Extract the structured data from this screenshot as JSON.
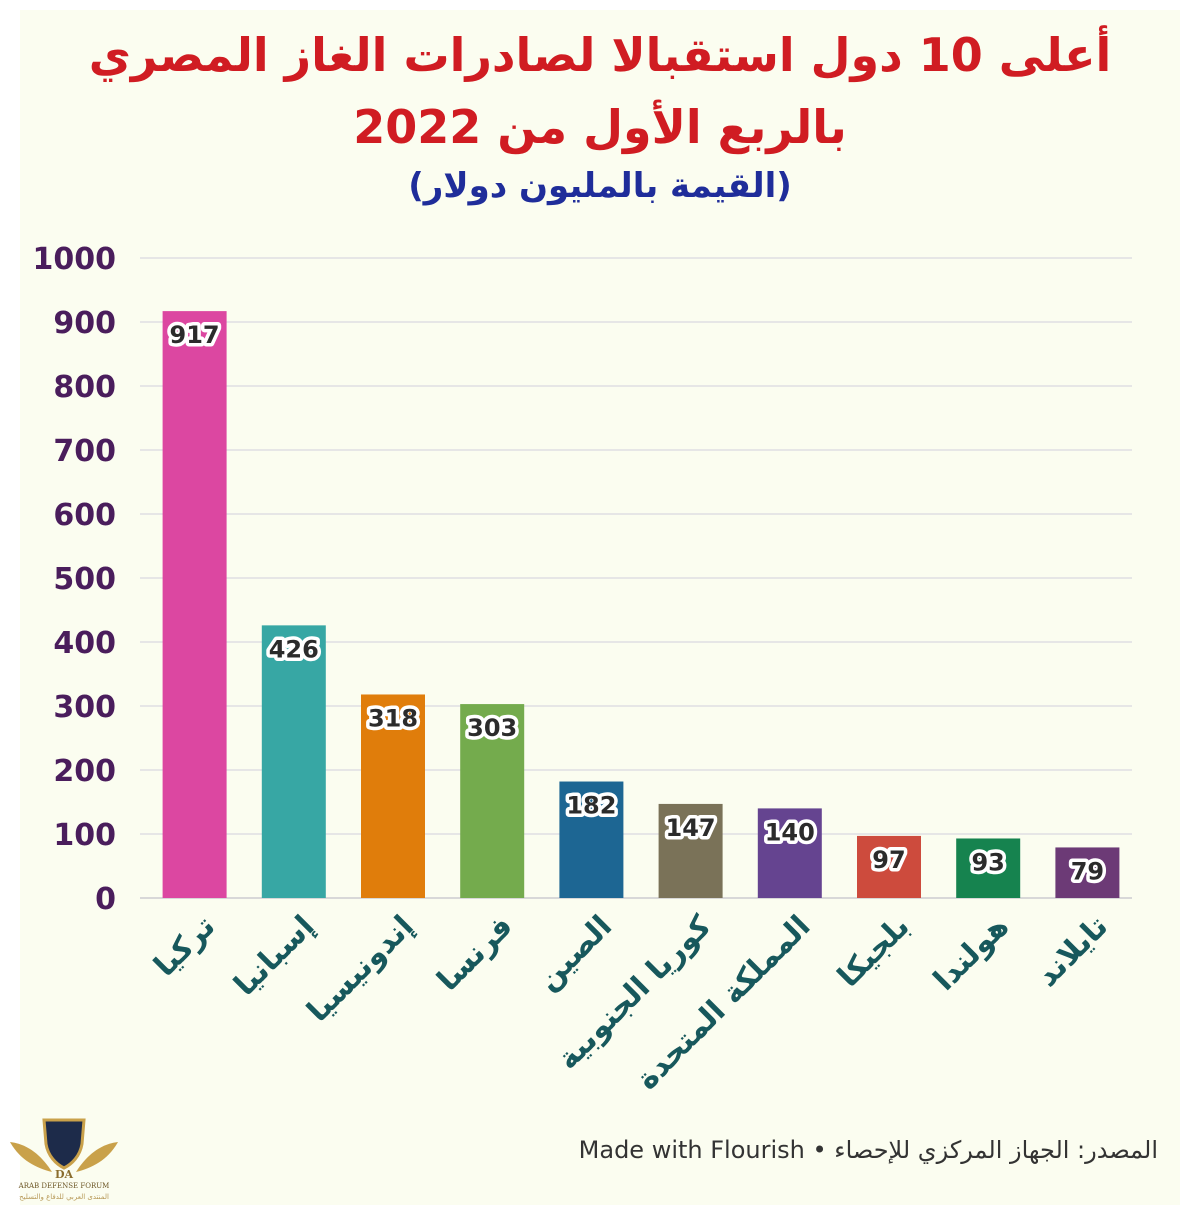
{
  "chart_data": {
    "type": "bar",
    "title_line1": "أعلى 10 دول استقبالا لصادرات الغاز المصري",
    "title_line2": "بالربع الأول من 2022",
    "subtitle": "(القيمة بالمليون دولار)",
    "categories": [
      "تركيا",
      "إسبانيا",
      "إندونيسيا",
      "فرنسا",
      "الصين",
      "كوريا الجنوبية",
      "المملكة المتحدة",
      "بلجيكا",
      "هولندا",
      "تايلاند"
    ],
    "values": [
      917,
      426,
      318,
      303,
      182,
      147,
      140,
      97,
      93,
      79
    ],
    "colors": [
      "#dc47a1",
      "#37a7a4",
      "#e07d0b",
      "#74ab4d",
      "#1d6693",
      "#7a7258",
      "#654490",
      "#cd4b3d",
      "#16834f",
      "#6c3a76"
    ],
    "ylim": [
      0,
      1000
    ],
    "yticks": [
      0,
      100,
      200,
      300,
      400,
      500,
      600,
      700,
      800,
      900,
      1000
    ],
    "grid": true,
    "xlabel": "",
    "ylabel": ""
  },
  "footer": {
    "source": "المصدر: الجهاز المركزي للإحصاء",
    "separator": " • ",
    "made_with": "Made with Flourish"
  },
  "watermark": {
    "line1": "ARAB DEFENSE FORUM",
    "line2": "المنتدى العربي للدفاع والتسليح",
    "mark": "DA"
  },
  "colors": {
    "title": "#d01c22",
    "subtitle": "#1f2d9a",
    "axis_ticks": "#4a1d5c",
    "category_labels": "#17585c",
    "grid": "#e6e6e6",
    "background": "#fbfdf0"
  }
}
